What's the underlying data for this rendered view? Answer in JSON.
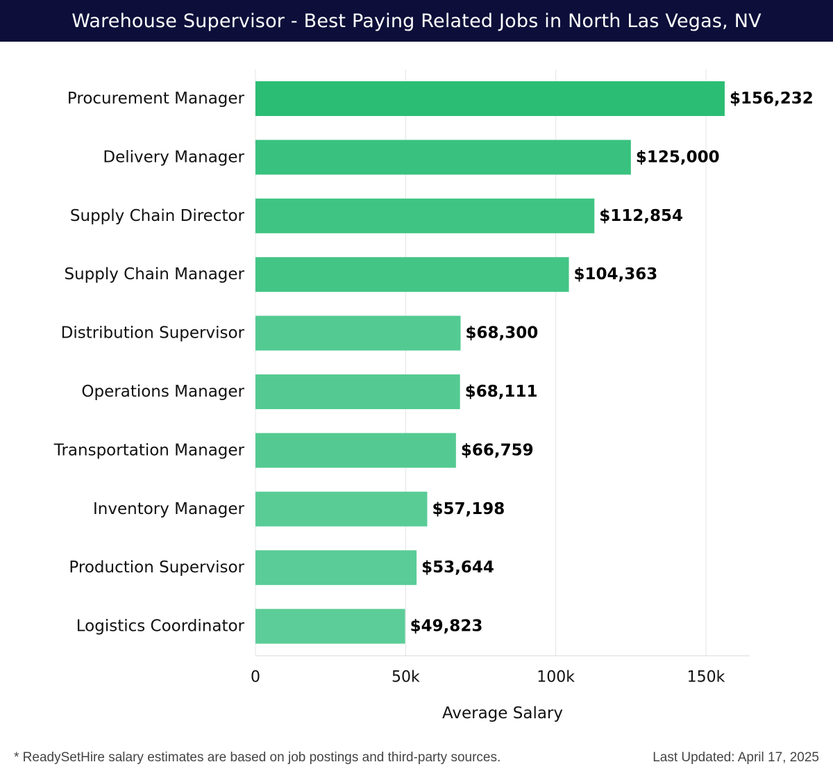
{
  "header": {
    "title": "Warehouse Supervisor - Best Paying Related Jobs in North Las Vegas, NV"
  },
  "chart_data": {
    "type": "bar",
    "orientation": "horizontal",
    "title": "Warehouse Supervisor - Best Paying Related Jobs in North Las Vegas, NV",
    "categories": [
      "Procurement Manager",
      "Delivery Manager",
      "Supply Chain Director",
      "Supply Chain Manager",
      "Distribution Supervisor",
      "Operations Manager",
      "Transportation Manager",
      "Inventory Manager",
      "Production Supervisor",
      "Logistics Coordinator"
    ],
    "values": [
      156232,
      125000,
      112854,
      104363,
      68300,
      68111,
      66759,
      57198,
      53644,
      49823
    ],
    "value_labels": [
      "$156,232",
      "$125,000",
      "$112,854",
      "$104,363",
      "$68,300",
      "$68,111",
      "$66,759",
      "$57,198",
      "$53,644",
      "$49,823"
    ],
    "xlabel": "Average Salary",
    "ylabel": "",
    "xlim": [
      0,
      165000
    ],
    "xticks": [
      0,
      50000,
      100000,
      150000
    ],
    "xtick_labels": [
      "0",
      "50k",
      "100k",
      "150k"
    ],
    "grid": true,
    "bar_color_max": "#2bbd74",
    "bar_color_min": "#5ccd98"
  },
  "footer": {
    "note": "* ReadySetHire salary estimates are based on job postings and third-party sources.",
    "updated": "Last Updated: April 17, 2025"
  }
}
